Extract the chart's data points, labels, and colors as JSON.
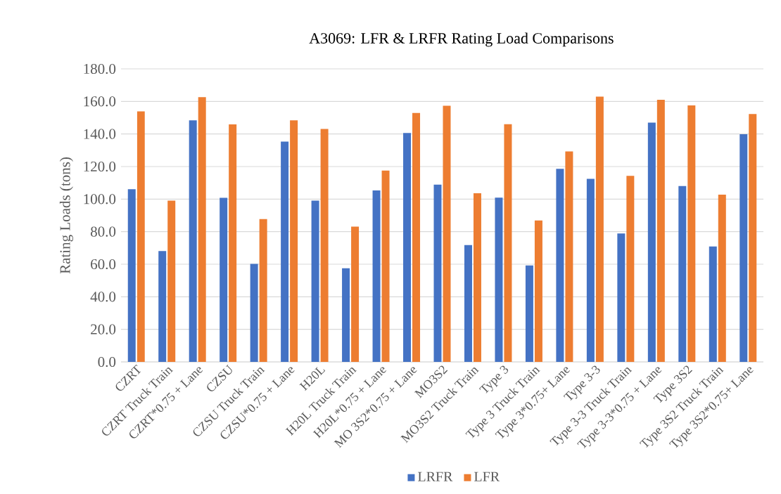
{
  "chart_data": {
    "type": "bar",
    "title": "A3069: LFR & LRFR Rating Load Comparisons",
    "ylabel": "Rating Loads (tons)",
    "categories": [
      "CZRT",
      "CZRT Truck Train",
      "CZRT*0.75 + Lane",
      "CZSU",
      "CZSU Truck Train",
      "CZSU*0.75 + Lane",
      "H20L",
      "H20L Truck Train",
      "H20L*0.75 + Lane",
      "MO 3S2*0.75 + Lane",
      "MO3S2",
      "MO3S2 Truck Train",
      "Type 3",
      "Type 3 Truck Train",
      "Type 3*0.75+ Lane",
      "Type 3-3",
      "Type 3-3 Truck Train",
      "Type 3-3*0.75 + Lane",
      "Type 3S2",
      "Type 3S2 Truck Train",
      "Type 3S2*0.75+ Lane"
    ],
    "series": [
      {
        "name": "LRFR",
        "color": "#4472c4",
        "values": [
          106.1,
          68.1,
          148.4,
          100.8,
          60.2,
          135.3,
          99.1,
          57.5,
          105.3,
          140.6,
          108.9,
          71.8,
          100.9,
          59.3,
          118.6,
          112.4,
          78.9,
          147.0,
          108.0,
          70.9,
          139.9
        ]
      },
      {
        "name": "LFR",
        "color": "#ed7d31",
        "values": [
          153.9,
          99.1,
          162.6,
          145.9,
          87.7,
          148.4,
          143.1,
          83.1,
          117.5,
          152.9,
          157.3,
          103.6,
          146.0,
          86.9,
          129.3,
          162.9,
          114.3,
          161.0,
          157.6,
          102.7,
          152.3
        ]
      }
    ],
    "ylim": [
      0,
      180
    ],
    "yticks": [
      {
        "value": 0,
        "label": "0.0"
      },
      {
        "value": 20,
        "label": "20.0"
      },
      {
        "value": 40,
        "label": "40.0"
      },
      {
        "value": 60,
        "label": "60.0"
      },
      {
        "value": 80,
        "label": "80.0"
      },
      {
        "value": 100,
        "label": "100.0"
      },
      {
        "value": 120,
        "label": "120.0"
      },
      {
        "value": 140,
        "label": "140.0"
      },
      {
        "value": 160,
        "label": "160.0"
      },
      {
        "value": 180,
        "label": "180.0"
      }
    ],
    "grid": "y",
    "legend": "bottom"
  }
}
